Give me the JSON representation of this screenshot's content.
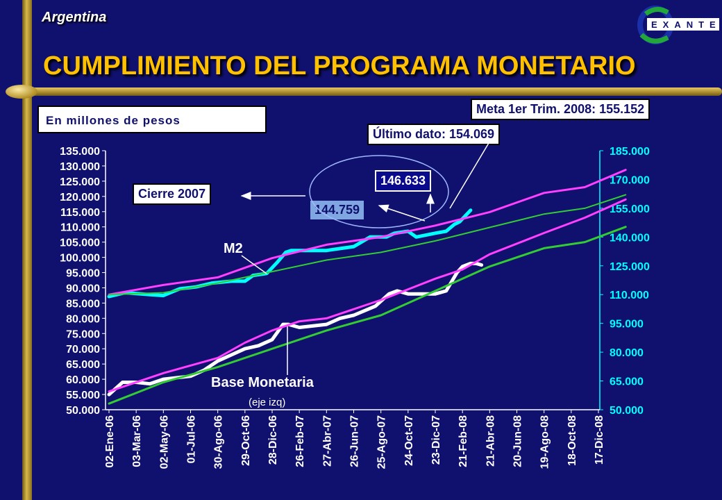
{
  "header": {
    "country": "Argentina",
    "title": "CUMPLIMIENTO DEL PROGRAMA MONETARIO"
  },
  "logo": {
    "text": "EXANTE"
  },
  "units_label": "En millones de pesos",
  "callouts": {
    "meta": "Meta 1er Trim. 2008: 155.152",
    "ultimo": "Último dato: 154.069",
    "cierre": "Cierre 2007",
    "v146": "146.633",
    "v144": "144.759"
  },
  "annotations": {
    "m2": "M2",
    "base": "Base Monetaria",
    "eje": "(eje izq)"
  },
  "chart_data": {
    "type": "line",
    "x_labels": [
      "02-Ene-06",
      "03-Mar-06",
      "02-May-06",
      "01-Jul-06",
      "30-Ago-06",
      "29-Oct-06",
      "28-Dic-06",
      "26-Feb-07",
      "27-Abr-07",
      "26-Jun-07",
      "25-Ago-07",
      "24-Oct-07",
      "23-Dic-07",
      "21-Feb-08",
      "21-Abr-08",
      "20-Jun-08",
      "19-Ago-08",
      "18-Oct-08",
      "17-Dic-08"
    ],
    "y_left": {
      "ticks": [
        "135.000",
        "130.000",
        "125.000",
        "120.000",
        "115.000",
        "110.000",
        "105.000",
        "100.000",
        "95.000",
        "90.000",
        "85.000",
        "80.000",
        "75.000",
        "70.000",
        "65.000",
        "60.000",
        "55.000",
        "50.000"
      ],
      "min": 50000,
      "max": 135000
    },
    "y_right": {
      "ticks": [
        "185.000",
        "170.000",
        "155.000",
        "140.000",
        "125.000",
        "110.000",
        "95.000",
        "80.000",
        "65.000",
        "50.000"
      ],
      "min": 50000,
      "max": 185000
    },
    "series": [
      {
        "axis": "right",
        "color": "#00ffff",
        "width": 5,
        "points": [
          [
            0,
            109
          ],
          [
            0.6,
            111
          ],
          [
            1.5,
            110
          ],
          [
            2.0,
            109.5
          ],
          [
            2.6,
            113
          ],
          [
            3.2,
            114
          ],
          [
            3.8,
            116
          ],
          [
            4.5,
            117
          ],
          [
            5.0,
            117
          ],
          [
            5.3,
            120
          ],
          [
            5.8,
            121
          ],
          [
            6.2,
            127
          ],
          [
            6.5,
            132
          ],
          [
            6.7,
            133
          ],
          [
            7.3,
            133
          ],
          [
            8.0,
            133
          ],
          [
            8.5,
            134
          ],
          [
            9.0,
            135
          ],
          [
            9.6,
            140
          ],
          [
            10.2,
            140
          ],
          [
            10.5,
            142
          ],
          [
            11.0,
            143
          ],
          [
            11.3,
            140
          ],
          [
            12.0,
            142
          ],
          [
            12.4,
            143
          ],
          [
            12.7,
            146.6
          ],
          [
            12.9,
            148
          ],
          [
            13.1,
            151
          ],
          [
            13.3,
            154
          ]
        ]
      },
      {
        "axis": "right",
        "color": "#ff40ff",
        "width": 3,
        "points": [
          [
            0,
            110
          ],
          [
            2,
            115
          ],
          [
            4,
            119
          ],
          [
            6,
            129
          ],
          [
            8,
            136
          ],
          [
            10,
            140
          ],
          [
            12,
            146
          ],
          [
            14,
            153
          ],
          [
            16,
            163
          ],
          [
            17.5,
            166
          ],
          [
            19,
            175
          ]
        ]
      },
      {
        "axis": "right",
        "color": "#33cc33",
        "width": 2,
        "points": [
          [
            0,
            110
          ],
          [
            2,
            111
          ],
          [
            4,
            116
          ],
          [
            6,
            122
          ],
          [
            8,
            128
          ],
          [
            10,
            132
          ],
          [
            12,
            138
          ],
          [
            14,
            145
          ],
          [
            16,
            152
          ],
          [
            17.5,
            155
          ],
          [
            19,
            162
          ]
        ]
      },
      {
        "axis": "left",
        "color": "#ffffff",
        "width": 5,
        "points": [
          [
            0,
            55
          ],
          [
            0.5,
            59
          ],
          [
            1,
            59
          ],
          [
            1.5,
            58.5
          ],
          [
            2,
            60
          ],
          [
            3,
            61
          ],
          [
            3.5,
            63
          ],
          [
            4,
            66
          ],
          [
            4.5,
            68
          ],
          [
            5,
            70
          ],
          [
            5.5,
            71
          ],
          [
            6,
            73
          ],
          [
            6.4,
            78
          ],
          [
            6.6,
            78
          ],
          [
            7.0,
            77
          ],
          [
            8.0,
            78
          ],
          [
            8.5,
            80
          ],
          [
            9,
            81
          ],
          [
            9.8,
            84
          ],
          [
            10.3,
            88
          ],
          [
            10.6,
            89
          ],
          [
            11.0,
            88
          ],
          [
            11.5,
            88
          ],
          [
            12.0,
            88
          ],
          [
            12.4,
            89
          ],
          [
            12.8,
            95
          ],
          [
            13.0,
            97
          ],
          [
            13.3,
            98
          ],
          [
            13.5,
            98
          ],
          [
            13.7,
            97.5
          ]
        ]
      },
      {
        "axis": "left",
        "color": "#ff40ff",
        "width": 3,
        "points": [
          [
            0,
            56
          ],
          [
            2,
            62
          ],
          [
            4,
            67
          ],
          [
            5,
            72
          ],
          [
            6,
            76
          ],
          [
            7,
            79
          ],
          [
            8,
            80
          ],
          [
            10,
            86
          ],
          [
            12,
            93
          ],
          [
            13,
            96
          ],
          [
            14,
            101
          ],
          [
            16,
            108
          ],
          [
            17.5,
            113
          ],
          [
            19,
            119
          ]
        ]
      },
      {
        "axis": "left",
        "color": "#33cc33",
        "width": 3,
        "points": [
          [
            0,
            52
          ],
          [
            2,
            59
          ],
          [
            4,
            64
          ],
          [
            6,
            70
          ],
          [
            8,
            76
          ],
          [
            10,
            81
          ],
          [
            12,
            89
          ],
          [
            14,
            97
          ],
          [
            16,
            103
          ],
          [
            17.5,
            105
          ],
          [
            19,
            110
          ]
        ]
      }
    ]
  }
}
